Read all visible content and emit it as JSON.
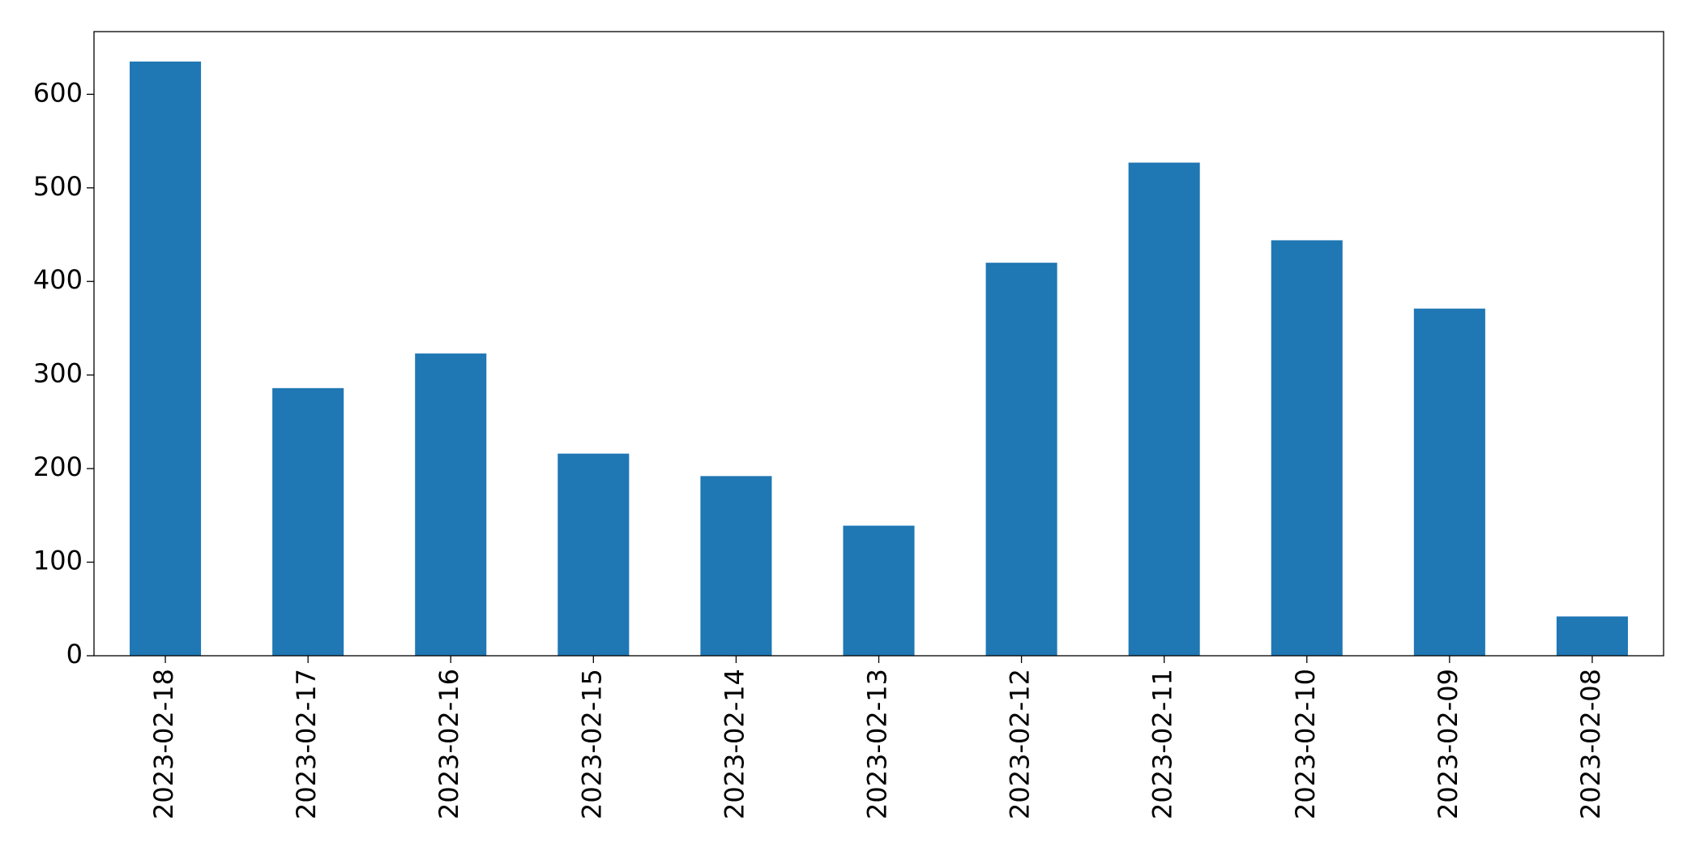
{
  "chart_data": {
    "type": "bar",
    "categories": [
      "2023-02-18",
      "2023-02-17",
      "2023-02-16",
      "2023-02-15",
      "2023-02-14",
      "2023-02-13",
      "2023-02-12",
      "2023-02-11",
      "2023-02-10",
      "2023-02-09",
      "2023-02-08"
    ],
    "values": [
      635,
      286,
      323,
      216,
      192,
      139,
      420,
      527,
      444,
      371,
      42
    ],
    "color": "#1f77b4",
    "ylim": [
      0,
      667
    ],
    "yticks": [
      0,
      100,
      200,
      300,
      400,
      500,
      600
    ],
    "grid": false
  }
}
